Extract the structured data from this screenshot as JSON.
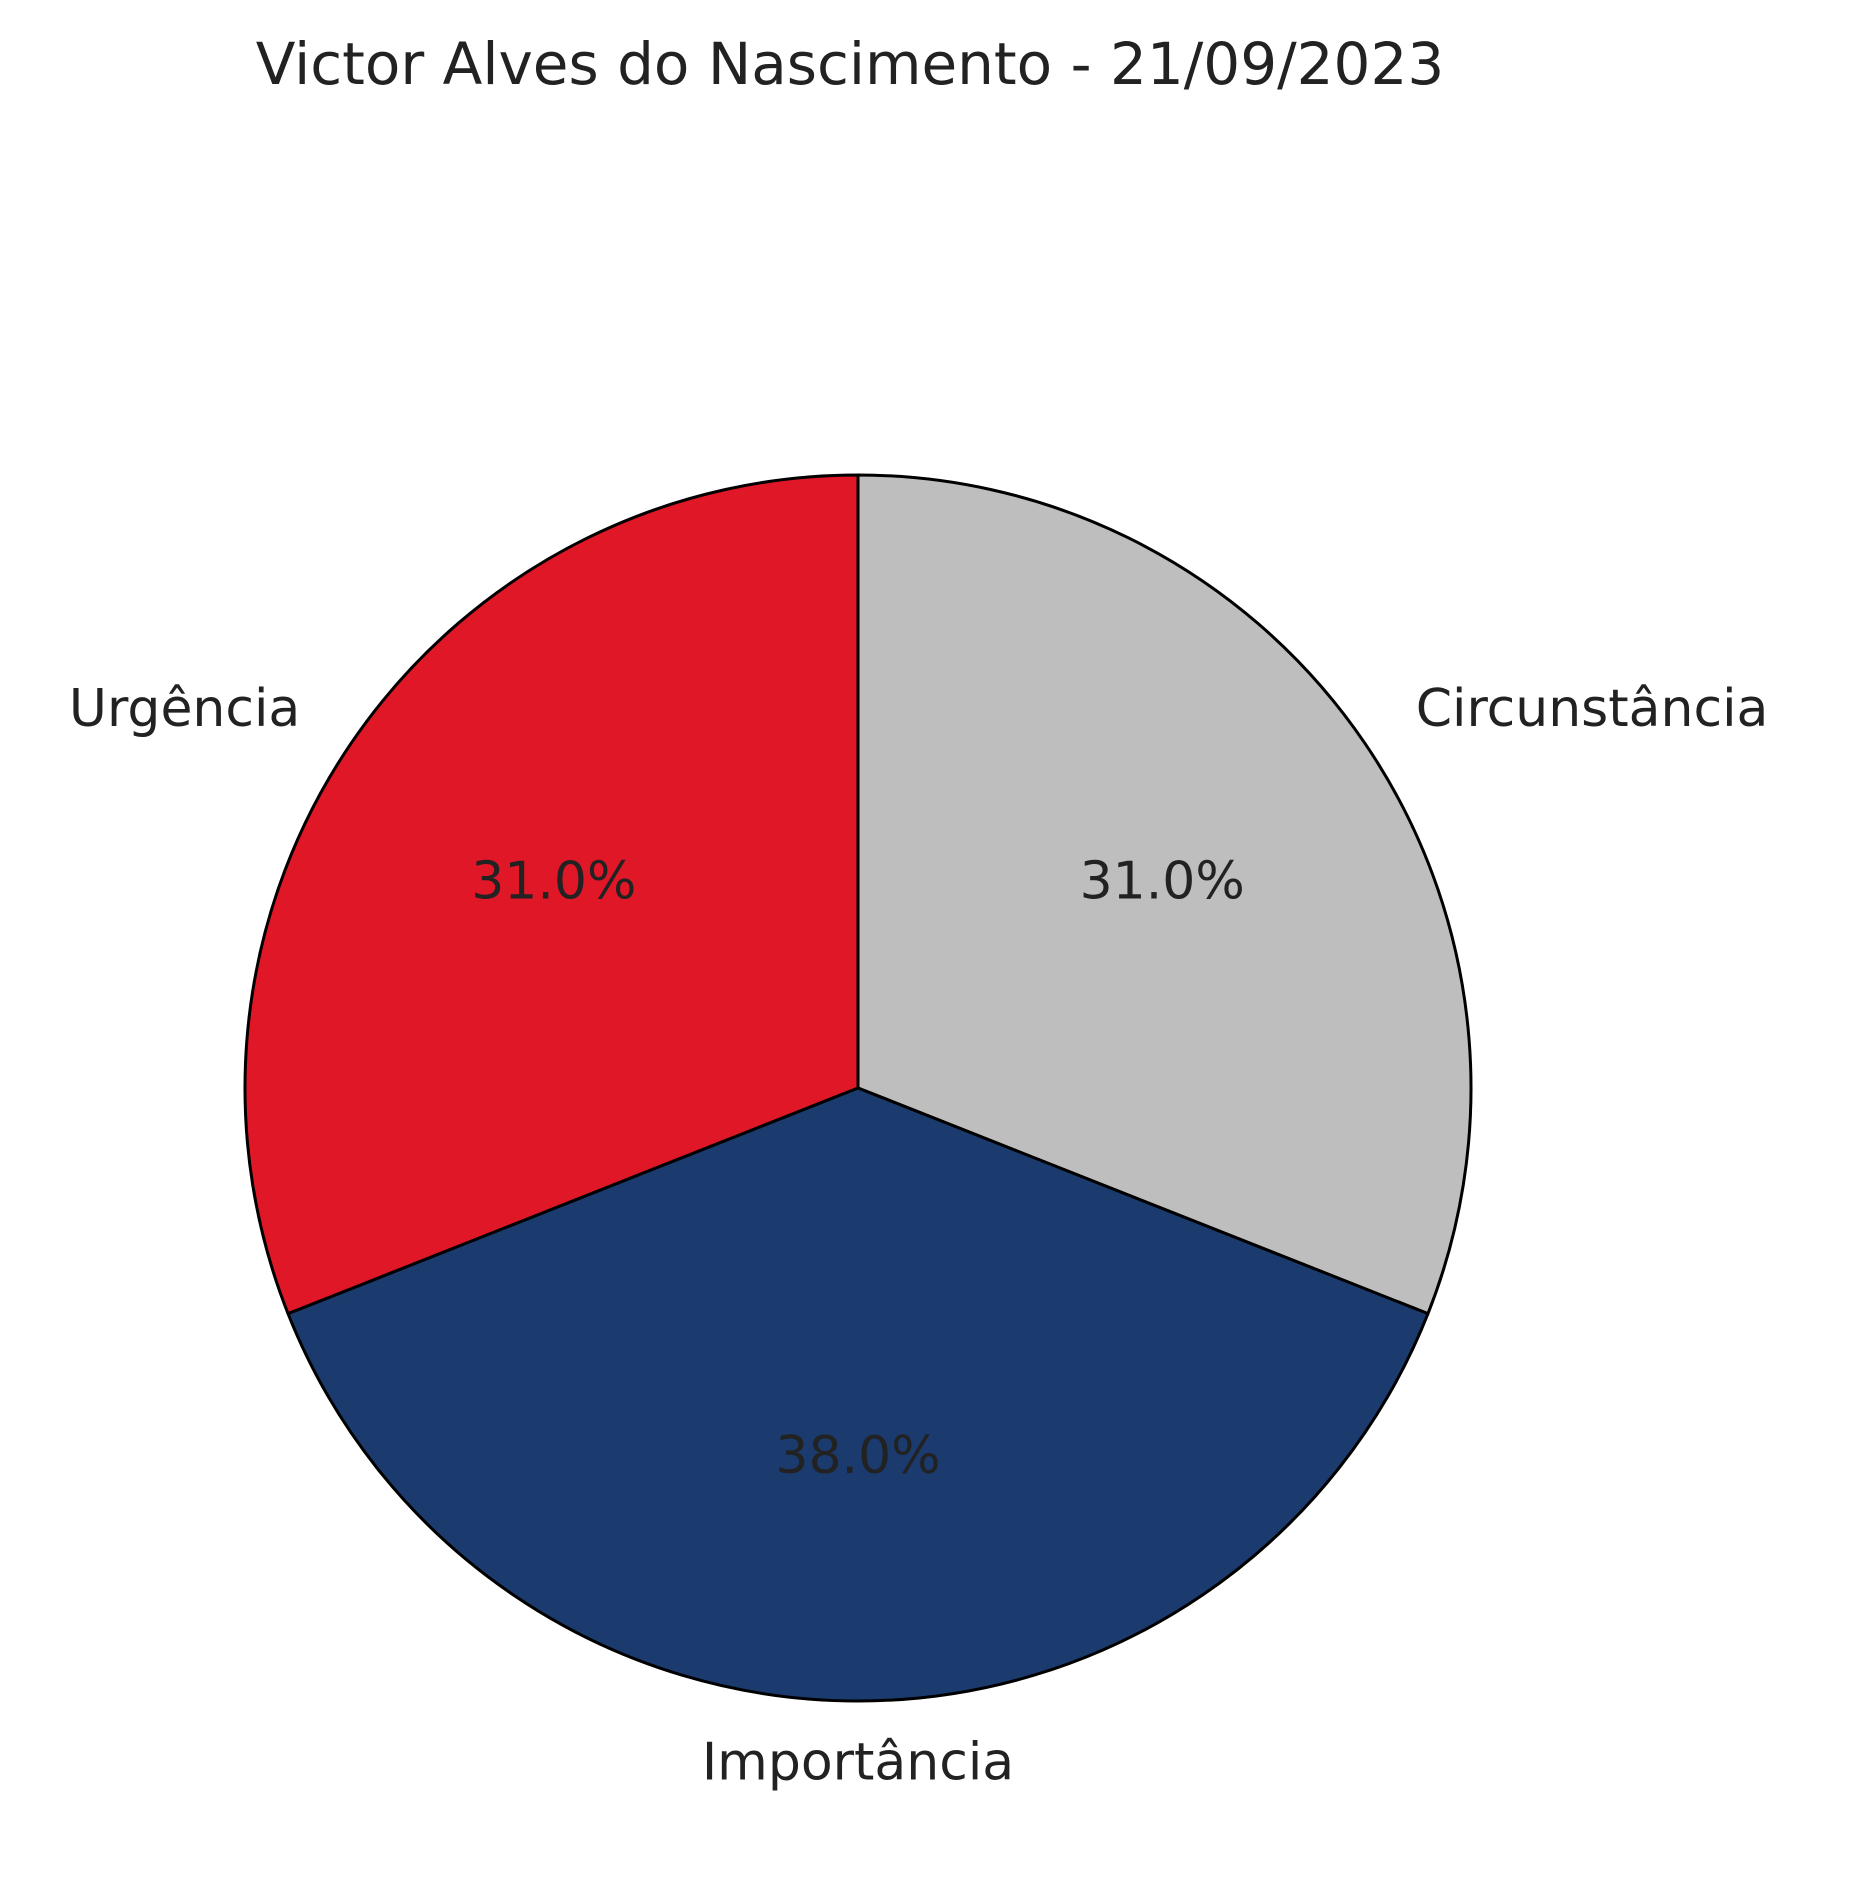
{
  "chart_data": {
    "type": "pie",
    "title": "Victor Alves do Nascimento - 21/09/2023",
    "slices": [
      {
        "label": "Circunstância",
        "value": 31.0,
        "pct_label": "31.0%",
        "color": "#bdbebd"
      },
      {
        "label": "Importância",
        "value": 38.0,
        "pct_label": "38.0%",
        "color": "#1b3b6f"
      },
      {
        "label": "Urgência",
        "value": 31.0,
        "pct_label": "31.0%",
        "color": "#e01726"
      }
    ],
    "start": "top",
    "direction": "clockwise"
  }
}
